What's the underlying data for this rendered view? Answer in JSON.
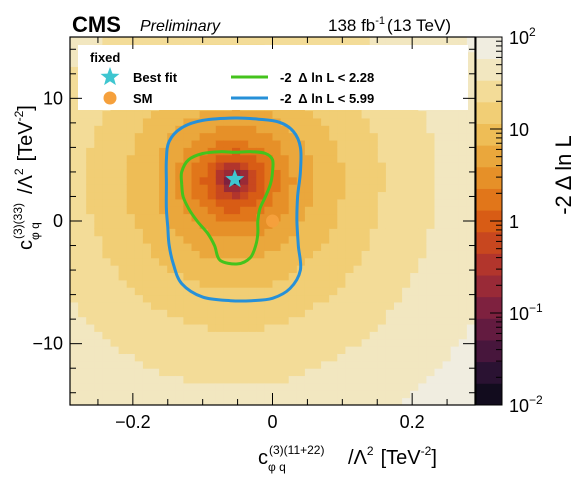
{
  "header": {
    "experiment": "CMS",
    "status": "Preliminary",
    "lumi_value": "138 fb",
    "lumi_exp": "-1",
    "lumi_energy": "(13 TeV)"
  },
  "axes": {
    "x_label_c": "c",
    "x_label_sub": "φ q",
    "x_label_sup": "(3)(11+22)",
    "x_label_tail": "/Λ",
    "x_label_tail_sup": "2",
    "x_label_unit": "[TeV",
    "x_label_unit_sup": "-2",
    "x_label_unit_close": "]",
    "y_label_c": "c",
    "y_label_sub": "φ q",
    "y_label_sup": "(3)(33)",
    "y_label_tail": "/Λ",
    "y_label_tail_sup": "2",
    "y_label_unit": "[TeV",
    "y_label_unit_sup": "-2",
    "y_label_unit_close": "]"
  },
  "colorbar": {
    "label": "-2 Δ ln L",
    "ticks": [
      {
        "base": "10",
        "exp": "2",
        "value": 100
      },
      {
        "base": "10",
        "exp": "",
        "value": 10
      },
      {
        "base": "1",
        "exp": "",
        "value": 1
      },
      {
        "base": "10",
        "exp": "−1",
        "value": 0.1
      },
      {
        "base": "10",
        "exp": "−2",
        "value": 0.01
      }
    ],
    "range": [
      0.01,
      100
    ],
    "scale": "log",
    "palette": [
      "#120c1e",
      "#2a1232",
      "#47163c",
      "#631b40",
      "#7e213f",
      "#992a37",
      "#b2352c",
      "#c8471f",
      "#d85c15",
      "#e1761a",
      "#e69028",
      "#eaa73c",
      "#eebd56",
      "#f1ce75",
      "#f3dc98",
      "#f2e7c0",
      "#f0ede0"
    ]
  },
  "legend": {
    "title": "fixed",
    "entries": [
      {
        "label": "Best fit",
        "symbol": "star",
        "color": "#3ec6d0"
      },
      {
        "label": "SM",
        "symbol": "circle",
        "color": "#f5a03c"
      },
      {
        "label": "-2  Δ ln L < 2.28",
        "symbol": "line",
        "color": "#44c31c"
      },
      {
        "label": "-2  Δ ln L < 5.99",
        "symbol": "line",
        "color": "#2690d8"
      }
    ]
  },
  "chart_data": {
    "type": "heatmap",
    "xlim": [
      -0.29,
      0.29
    ],
    "ylim": [
      -15,
      15
    ],
    "x_ticks": [
      {
        "v": -0.2,
        "t": "−0.2"
      },
      {
        "v": 0,
        "t": "0"
      },
      {
        "v": 0.2,
        "t": "0.2"
      }
    ],
    "y_ticks": [
      {
        "v": 10,
        "t": "10"
      },
      {
        "v": 0,
        "t": "0"
      },
      {
        "v": -10,
        "t": "−10"
      }
    ],
    "z_scale": "log",
    "z_range": [
      0.01,
      100
    ],
    "best_fit": {
      "x": -0.054,
      "y": 3.4
    },
    "sm": {
      "x": 0.0,
      "y": 0.0
    },
    "contour_68": [
      [
        -0.054,
        5.6
      ],
      [
        -0.03,
        5.65
      ],
      [
        -0.01,
        5.5
      ],
      [
        0.0,
        5.0
      ],
      [
        0.0,
        4.0
      ],
      [
        -0.003,
        3.0
      ],
      [
        -0.01,
        2.0
      ],
      [
        -0.018,
        1.0
      ],
      [
        -0.021,
        0.0
      ],
      [
        -0.021,
        -1.0
      ],
      [
        -0.024,
        -2.0
      ],
      [
        -0.032,
        -3.0
      ],
      [
        -0.05,
        -3.5
      ],
      [
        -0.075,
        -3.2
      ],
      [
        -0.083,
        -2.0
      ],
      [
        -0.093,
        -1.0
      ],
      [
        -0.108,
        0.0
      ],
      [
        -0.12,
        1.0
      ],
      [
        -0.128,
        2.0
      ],
      [
        -0.13,
        3.0
      ],
      [
        -0.13,
        4.0
      ],
      [
        -0.12,
        5.0
      ],
      [
        -0.1,
        5.5
      ],
      [
        -0.075,
        5.65
      ],
      [
        -0.054,
        5.6
      ]
    ],
    "contour_95": [
      [
        -0.054,
        8.4
      ],
      [
        -0.02,
        8.3
      ],
      [
        0.01,
        8.05
      ],
      [
        0.03,
        7.3
      ],
      [
        0.04,
        6.0
      ],
      [
        0.04,
        4.0
      ],
      [
        0.036,
        2.0
      ],
      [
        0.035,
        0.0
      ],
      [
        0.037,
        -2.0
      ],
      [
        0.04,
        -4.0
      ],
      [
        0.025,
        -5.5
      ],
      [
        0.0,
        -6.3
      ],
      [
        -0.03,
        -6.5
      ],
      [
        -0.06,
        -6.5
      ],
      [
        -0.1,
        -6.2
      ],
      [
        -0.13,
        -5.1
      ],
      [
        -0.142,
        -3.5
      ],
      [
        -0.148,
        -2.0
      ],
      [
        -0.15,
        -0.5
      ],
      [
        -0.152,
        1.0
      ],
      [
        -0.152,
        3.0
      ],
      [
        -0.152,
        5.0
      ],
      [
        -0.148,
        6.5
      ],
      [
        -0.13,
        7.6
      ],
      [
        -0.1,
        8.2
      ],
      [
        -0.054,
        8.4
      ]
    ],
    "surface": {
      "sx": 0.054,
      "sy_pos": 2.8,
      "sy_neg": 3.15,
      "pa": 1.8,
      "pb": 1.75,
      "floor": 0.02
    }
  }
}
